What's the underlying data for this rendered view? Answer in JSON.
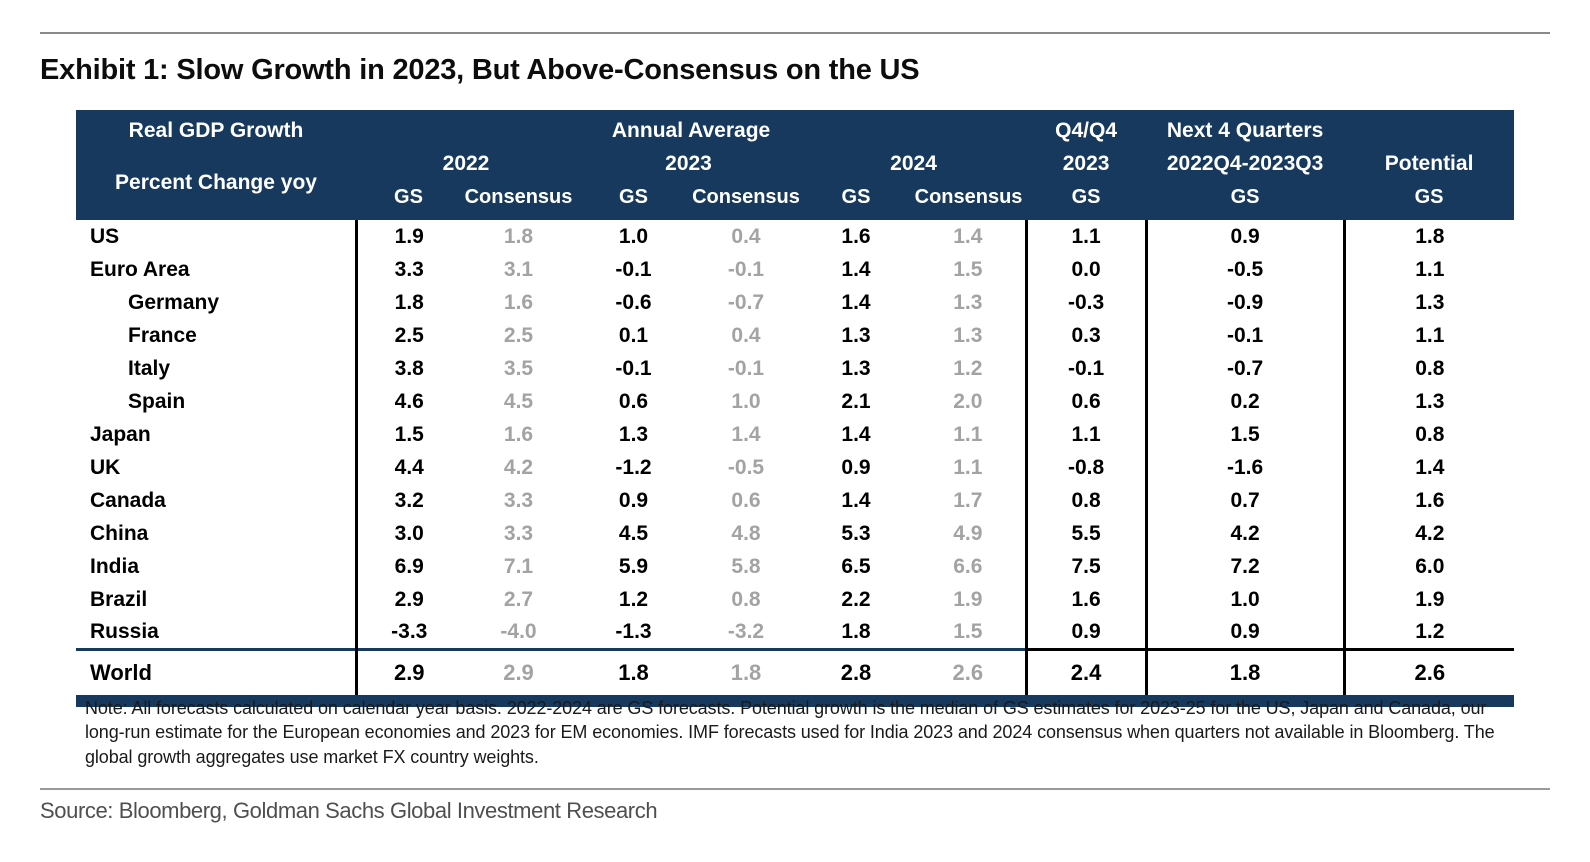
{
  "page": {
    "title": "Exhibit 1: Slow Growth in 2023, But Above-Consensus on the US",
    "note": "Note: All forecasts calculated on calendar year basis. 2022-2024 are GS forecasts. Potential growth is the median of GS estimates for 2023-25 for the US, Japan and Canada, our long-run estimate for the European economies and 2023 for EM economies. IMF forecasts used for India 2023 and 2024 consensus when quarters not available in Bloomberg. The global growth aggregates use market FX country weights.",
    "source": "Source: Bloomberg, Goldman Sachs Global Investment Research"
  },
  "colors": {
    "header_navy": "#17395d",
    "consensus_gray": "#a3a3a3",
    "gs_black": "#000000"
  },
  "table": {
    "header": {
      "title_line1": "Real GDP Growth",
      "title_line2": "Percent Change yoy",
      "annual_average": "Annual Average",
      "years": [
        "2022",
        "2023",
        "2024"
      ],
      "gs_label": "GS",
      "consensus_label": "Consensus",
      "q4_line1": "Q4/Q4",
      "q4_line2": "2023",
      "next4q_line1": "Next 4 Quarters",
      "next4q_line2": "2022Q4-2023Q3",
      "potential_label": "Potential"
    },
    "columns": [
      "2022 GS",
      "2022 Consensus",
      "2023 GS",
      "2023 Consensus",
      "2024 GS",
      "2024 Consensus",
      "Q4/Q4 2023 GS",
      "Next 4 Quarters 2022Q4-2023Q3 GS",
      "Potential GS"
    ],
    "rows": [
      {
        "name": "US",
        "indent": false,
        "world": false,
        "values": [
          "1.9",
          "1.8",
          "1.0",
          "0.4",
          "1.6",
          "1.4",
          "1.1",
          "0.9",
          "1.8"
        ]
      },
      {
        "name": "Euro Area",
        "indent": false,
        "world": false,
        "values": [
          "3.3",
          "3.1",
          "-0.1",
          "-0.1",
          "1.4",
          "1.5",
          "0.0",
          "-0.5",
          "1.1"
        ]
      },
      {
        "name": "Germany",
        "indent": true,
        "world": false,
        "values": [
          "1.8",
          "1.6",
          "-0.6",
          "-0.7",
          "1.4",
          "1.3",
          "-0.3",
          "-0.9",
          "1.3"
        ]
      },
      {
        "name": "France",
        "indent": true,
        "world": false,
        "values": [
          "2.5",
          "2.5",
          "0.1",
          "0.4",
          "1.3",
          "1.3",
          "0.3",
          "-0.1",
          "1.1"
        ]
      },
      {
        "name": "Italy",
        "indent": true,
        "world": false,
        "values": [
          "3.8",
          "3.5",
          "-0.1",
          "-0.1",
          "1.3",
          "1.2",
          "-0.1",
          "-0.7",
          "0.8"
        ]
      },
      {
        "name": "Spain",
        "indent": true,
        "world": false,
        "values": [
          "4.6",
          "4.5",
          "0.6",
          "1.0",
          "2.1",
          "2.0",
          "0.6",
          "0.2",
          "1.3"
        ]
      },
      {
        "name": "Japan",
        "indent": false,
        "world": false,
        "values": [
          "1.5",
          "1.6",
          "1.3",
          "1.4",
          "1.4",
          "1.1",
          "1.1",
          "1.5",
          "0.8"
        ]
      },
      {
        "name": "UK",
        "indent": false,
        "world": false,
        "values": [
          "4.4",
          "4.2",
          "-1.2",
          "-0.5",
          "0.9",
          "1.1",
          "-0.8",
          "-1.6",
          "1.4"
        ]
      },
      {
        "name": "Canada",
        "indent": false,
        "world": false,
        "values": [
          "3.2",
          "3.3",
          "0.9",
          "0.6",
          "1.4",
          "1.7",
          "0.8",
          "0.7",
          "1.6"
        ]
      },
      {
        "name": "China",
        "indent": false,
        "world": false,
        "values": [
          "3.0",
          "3.3",
          "4.5",
          "4.8",
          "5.3",
          "4.9",
          "5.5",
          "4.2",
          "4.2"
        ]
      },
      {
        "name": "India",
        "indent": false,
        "world": false,
        "values": [
          "6.9",
          "7.1",
          "5.9",
          "5.8",
          "6.5",
          "6.6",
          "7.5",
          "7.2",
          "6.0"
        ]
      },
      {
        "name": "Brazil",
        "indent": false,
        "world": false,
        "values": [
          "2.9",
          "2.7",
          "1.2",
          "0.8",
          "2.2",
          "1.9",
          "1.6",
          "1.0",
          "1.9"
        ]
      },
      {
        "name": "Russia",
        "indent": false,
        "world": false,
        "values": [
          "-3.3",
          "-4.0",
          "-1.3",
          "-3.2",
          "1.8",
          "1.5",
          "0.9",
          "0.9",
          "1.2"
        ]
      },
      {
        "name": "World",
        "indent": false,
        "world": true,
        "values": [
          "2.9",
          "2.9",
          "1.8",
          "1.8",
          "2.8",
          "2.6",
          "2.4",
          "1.8",
          "2.6"
        ]
      }
    ]
  },
  "chart_data": {
    "type": "table",
    "title": "Exhibit 1: Slow Growth in 2023, But Above-Consensus on the US",
    "unit": "Real GDP Growth, Percent Change yoy",
    "columns": [
      "2022 GS",
      "2022 Consensus",
      "2023 GS",
      "2023 Consensus",
      "2024 GS",
      "2024 Consensus",
      "Q4/Q4 2023 GS",
      "Next 4 Quarters 2022Q4-2023Q3 GS",
      "Potential GS"
    ],
    "rows": [
      {
        "region": "US",
        "values": [
          1.9,
          1.8,
          1.0,
          0.4,
          1.6,
          1.4,
          1.1,
          0.9,
          1.8
        ]
      },
      {
        "region": "Euro Area",
        "values": [
          3.3,
          3.1,
          -0.1,
          -0.1,
          1.4,
          1.5,
          0.0,
          -0.5,
          1.1
        ]
      },
      {
        "region": "Germany",
        "values": [
          1.8,
          1.6,
          -0.6,
          -0.7,
          1.4,
          1.3,
          -0.3,
          -0.9,
          1.3
        ]
      },
      {
        "region": "France",
        "values": [
          2.5,
          2.5,
          0.1,
          0.4,
          1.3,
          1.3,
          0.3,
          -0.1,
          1.1
        ]
      },
      {
        "region": "Italy",
        "values": [
          3.8,
          3.5,
          -0.1,
          -0.1,
          1.3,
          1.2,
          -0.1,
          -0.7,
          0.8
        ]
      },
      {
        "region": "Spain",
        "values": [
          4.6,
          4.5,
          0.6,
          1.0,
          2.1,
          2.0,
          0.6,
          0.2,
          1.3
        ]
      },
      {
        "region": "Japan",
        "values": [
          1.5,
          1.6,
          1.3,
          1.4,
          1.4,
          1.1,
          1.1,
          1.5,
          0.8
        ]
      },
      {
        "region": "UK",
        "values": [
          4.4,
          4.2,
          -1.2,
          -0.5,
          0.9,
          1.1,
          -0.8,
          -1.6,
          1.4
        ]
      },
      {
        "region": "Canada",
        "values": [
          3.2,
          3.3,
          0.9,
          0.6,
          1.4,
          1.7,
          0.8,
          0.7,
          1.6
        ]
      },
      {
        "region": "China",
        "values": [
          3.0,
          3.3,
          4.5,
          4.8,
          5.3,
          4.9,
          5.5,
          4.2,
          4.2
        ]
      },
      {
        "region": "India",
        "values": [
          6.9,
          7.1,
          5.9,
          5.8,
          6.5,
          6.6,
          7.5,
          7.2,
          6.0
        ]
      },
      {
        "region": "Brazil",
        "values": [
          2.9,
          2.7,
          1.2,
          0.8,
          2.2,
          1.9,
          1.6,
          1.0,
          1.9
        ]
      },
      {
        "region": "Russia",
        "values": [
          -3.3,
          -4.0,
          -1.3,
          -3.2,
          1.8,
          1.5,
          0.9,
          0.9,
          1.2
        ]
      },
      {
        "region": "World",
        "values": [
          2.9,
          2.9,
          1.8,
          1.8,
          2.8,
          2.6,
          2.4,
          1.8,
          2.6
        ]
      }
    ]
  }
}
